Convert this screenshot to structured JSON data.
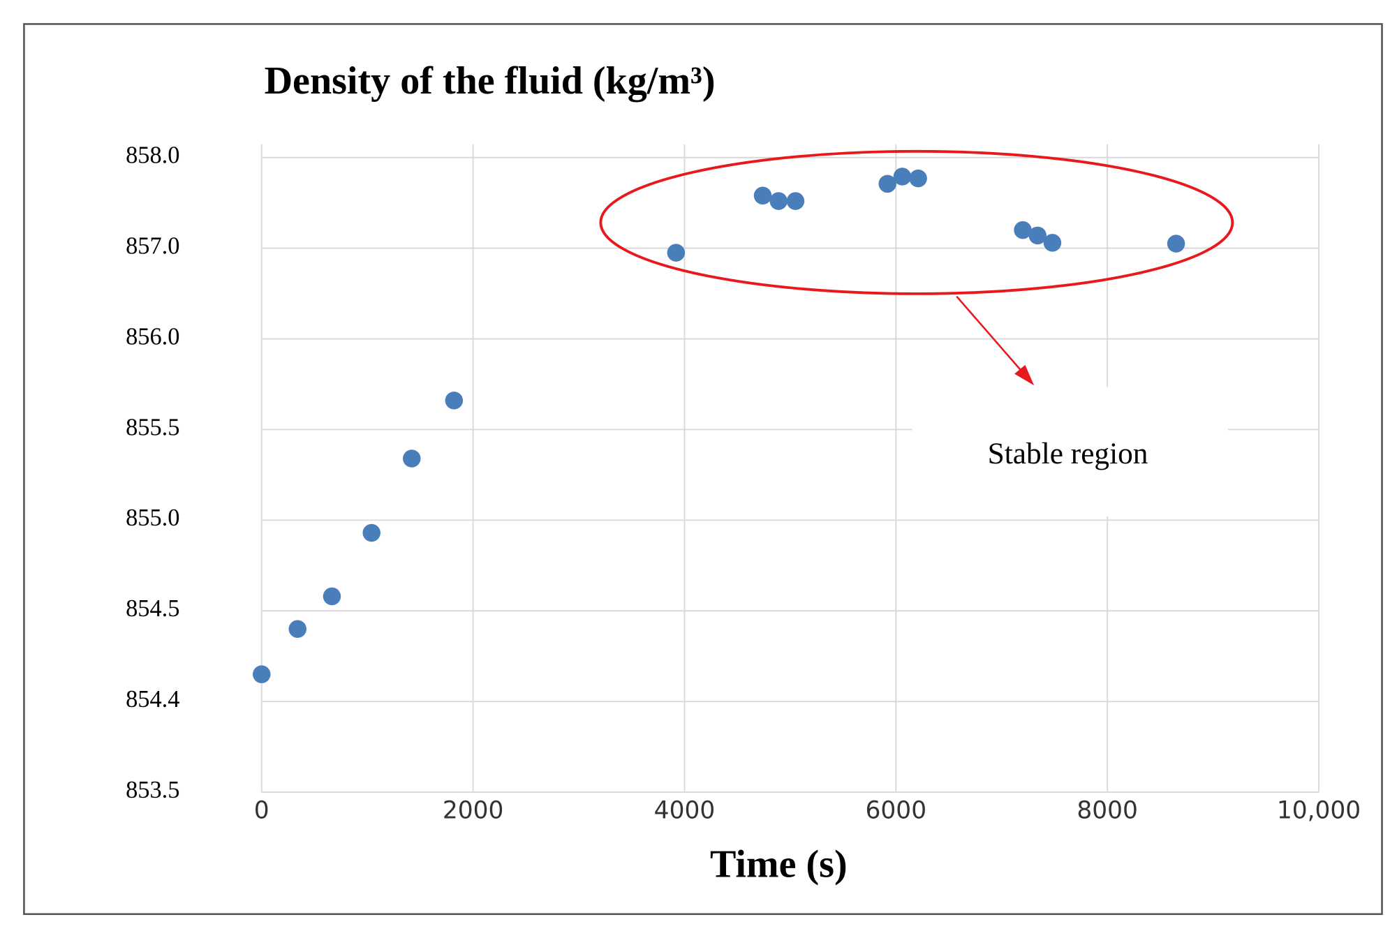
{
  "chart_data": {
    "type": "scatter",
    "title": "Density of the fluid (kg/m³)",
    "xlabel": "Time (s)",
    "annotation": "Stable region",
    "x": [
      0,
      340,
      665,
      1040,
      1420,
      1820,
      3920,
      4740,
      4890,
      5050,
      5920,
      6060,
      6210,
      7200,
      7340,
      7480,
      8650
    ],
    "series": [
      {
        "color": "#4a7ebb",
        "values": [
          854.43,
          854.48,
          854.58,
          854.93,
          855.34,
          855.66,
          856.95,
          857.58,
          857.52,
          857.52,
          857.71,
          857.79,
          857.77,
          857.2,
          857.14,
          857.06,
          857.05
        ]
      }
    ],
    "xlim": [
      0,
      10000
    ],
    "xticks": [
      0,
      2000,
      4000,
      6000,
      8000,
      {
        "value": 10000,
        "label": "10,000"
      }
    ],
    "ylim": [
      853.5,
      858.0
    ],
    "yticks": [
      {
        "value": 858.0,
        "label": "858.0"
      },
      {
        "value": 857.0,
        "label": "857.0"
      },
      {
        "value": 856.0,
        "label": "856.0"
      },
      855.5,
      {
        "value": 855.0,
        "label": "855.0"
      },
      854.5,
      854.4,
      853.5
    ],
    "grid": true
  }
}
